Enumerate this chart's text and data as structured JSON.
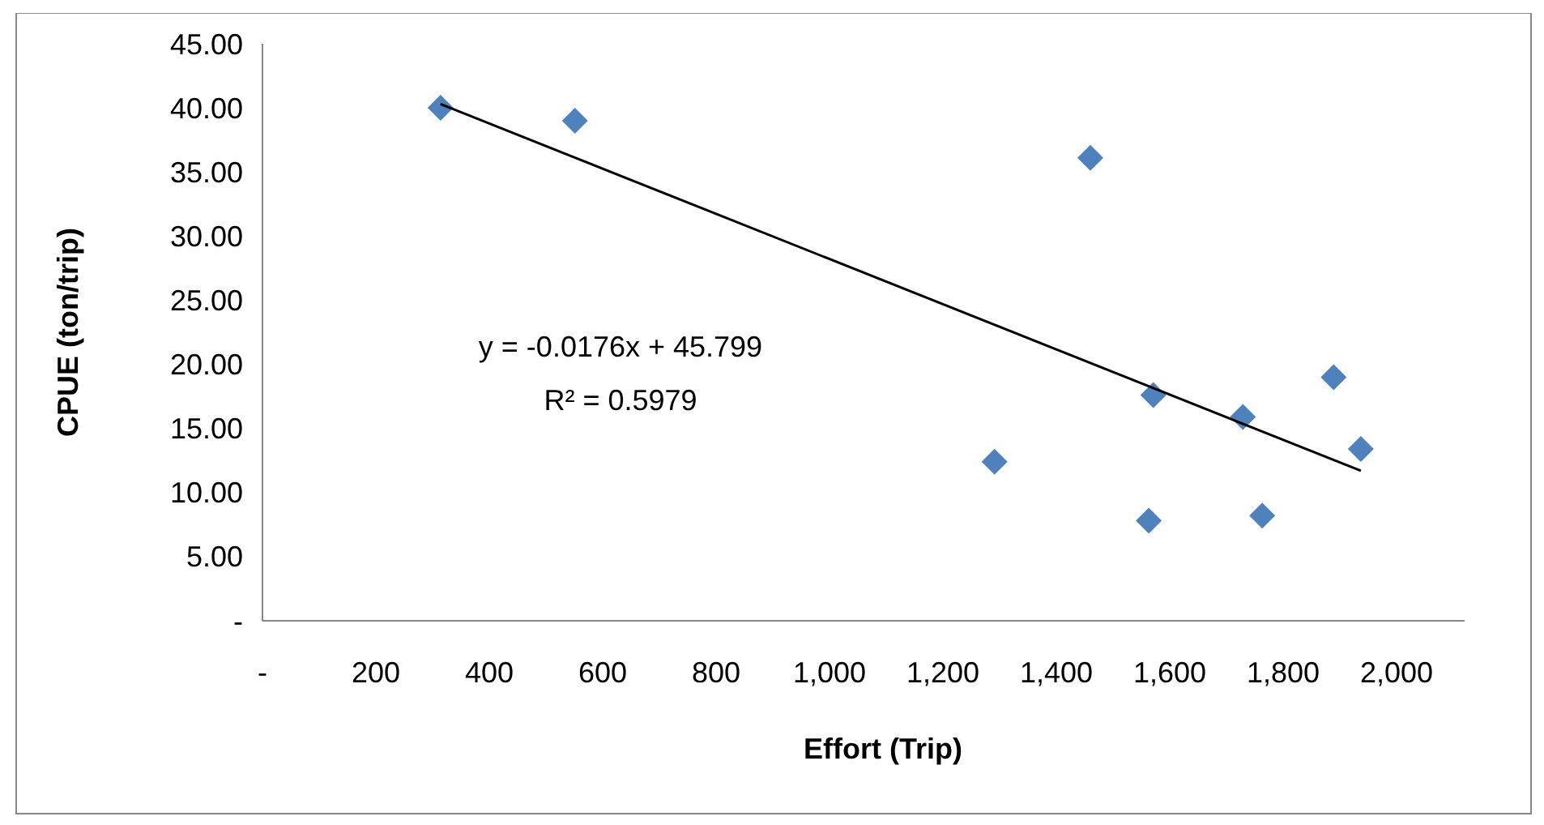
{
  "chart_data": {
    "type": "scatter",
    "xlabel": "Effort (Trip)",
    "ylabel": "CPUE (ton/trip)",
    "xlim": [
      0,
      2120
    ],
    "ylim": [
      0,
      45
    ],
    "xticks": [
      {
        "value": 0,
        "label": "-"
      },
      200,
      400,
      600,
      800,
      {
        "value": 1000,
        "label": "1,000"
      },
      {
        "value": 1200,
        "label": "1,200"
      },
      {
        "value": 1400,
        "label": "1,400"
      },
      {
        "value": 1600,
        "label": "1,600"
      },
      {
        "value": 1800,
        "label": "1,800"
      },
      {
        "value": 2000,
        "label": "2,000"
      }
    ],
    "yticks": [
      {
        "value": 0,
        "label": "-"
      },
      {
        "value": 5,
        "label": "5.00"
      },
      {
        "value": 10,
        "label": "10.00"
      },
      {
        "value": 15,
        "label": "15.00"
      },
      {
        "value": 20,
        "label": "20.00"
      },
      {
        "value": 25,
        "label": "25.00"
      },
      {
        "value": 30,
        "label": "30.00"
      },
      {
        "value": 35,
        "label": "35.00"
      },
      {
        "value": 40,
        "label": "40.00"
      },
      {
        "value": 45,
        "label": "45.00"
      }
    ],
    "grid": false,
    "series": [
      {
        "type": "scatter",
        "marker": "diamond",
        "color": "#4f81bd",
        "x": [
          314,
          551,
          1460,
          1291,
          1571,
          1563,
          1729,
          1763,
          1889,
          1937
        ],
        "values": [
          40.0,
          39.0,
          36.1,
          12.4,
          17.6,
          7.8,
          15.9,
          8.2,
          19.0,
          13.4
        ]
      },
      {
        "type": "line",
        "marker": "none",
        "color": "#000000",
        "x": [
          314,
          1937
        ],
        "values": [
          40.3,
          11.7
        ]
      }
    ],
    "annotations": [
      "y = -0.0176x + 45.799",
      "R² = 0.5979"
    ]
  }
}
